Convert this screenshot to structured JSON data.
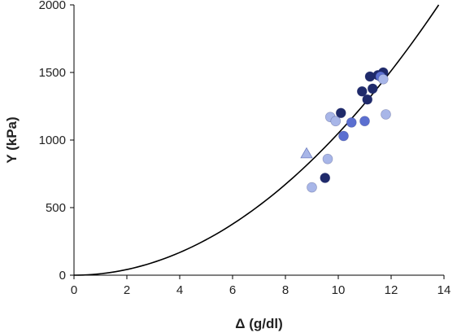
{
  "chart_data": {
    "type": "scatter",
    "xlabel": "Δ (g/dl)",
    "ylabel": "Y (kPa)",
    "xlim": [
      0,
      14
    ],
    "ylim": [
      0,
      2000
    ],
    "xticks": [
      0,
      2,
      4,
      6,
      8,
      10,
      12,
      14
    ],
    "yticks": [
      0,
      500,
      1000,
      1500,
      2000
    ],
    "grid": false,
    "colors": {
      "axis": "#000000",
      "curve": "#000000",
      "dark": "#1f2a6b",
      "medium": "#5b6fd0",
      "light": "#a8b6e8"
    },
    "fit_curve": {
      "shape": "quadratic through origin",
      "points": [
        {
          "x": 0,
          "y": 0
        },
        {
          "x": 2,
          "y": 41
        },
        {
          "x": 4,
          "y": 163
        },
        {
          "x": 6,
          "y": 367
        },
        {
          "x": 8,
          "y": 653
        },
        {
          "x": 10,
          "y": 1020
        },
        {
          "x": 12,
          "y": 1469
        },
        {
          "x": 13.8,
          "y": 2000
        }
      ]
    },
    "series": [
      {
        "marker": "circle",
        "color": "#1f2a6b",
        "points": [
          {
            "x": 9.5,
            "y": 720
          },
          {
            "x": 10.1,
            "y": 1200
          },
          {
            "x": 10.9,
            "y": 1360
          },
          {
            "x": 11.1,
            "y": 1300
          },
          {
            "x": 11.2,
            "y": 1470
          },
          {
            "x": 11.3,
            "y": 1380
          },
          {
            "x": 11.5,
            "y": 1480
          },
          {
            "x": 11.7,
            "y": 1500
          }
        ]
      },
      {
        "marker": "circle",
        "color": "#5b6fd0",
        "points": [
          {
            "x": 10.2,
            "y": 1030
          },
          {
            "x": 10.5,
            "y": 1130
          },
          {
            "x": 11.0,
            "y": 1140
          },
          {
            "x": 11.6,
            "y": 1470
          }
        ]
      },
      {
        "marker": "circle",
        "color": "#a8b6e8",
        "points": [
          {
            "x": 9.0,
            "y": 650
          },
          {
            "x": 9.6,
            "y": 860
          },
          {
            "x": 9.7,
            "y": 1170
          },
          {
            "x": 9.9,
            "y": 1140
          },
          {
            "x": 11.7,
            "y": 1450
          },
          {
            "x": 11.8,
            "y": 1190
          }
        ]
      },
      {
        "marker": "triangle",
        "color": "#a8b6e8",
        "points": [
          {
            "x": 8.8,
            "y": 900
          }
        ]
      }
    ]
  }
}
